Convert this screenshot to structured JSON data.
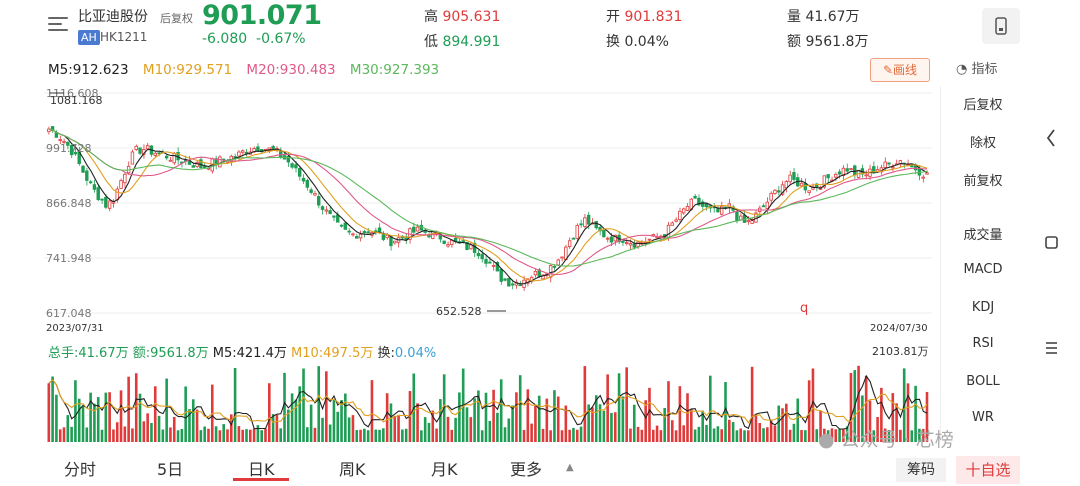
{
  "header": {
    "stock_name": "比亚迪股份",
    "badge": "AH",
    "code": "HK1211",
    "adjust_mode": "后复权",
    "price": "901.071",
    "change": "-6.080",
    "change_pct": "-0.67%",
    "quotes": [
      {
        "label": "高",
        "value": "905.631",
        "color": "red"
      },
      {
        "label": "低",
        "value": "894.991",
        "color": "green"
      },
      {
        "label": "开",
        "value": "901.831",
        "color": "red"
      },
      {
        "label": "换",
        "value": "0.04%",
        "color": "plain"
      },
      {
        "label": "量",
        "value": "41.67万",
        "color": "plain"
      },
      {
        "label": "额",
        "value": "9561.8万",
        "color": "plain"
      }
    ]
  },
  "ma": {
    "m5": "M5:912.623",
    "m10": "M10:929.571",
    "m20": "M20:930.483",
    "m30": "M30:927.393",
    "draw_label": "画线",
    "indicator_label": "指标"
  },
  "sidebar": {
    "items": [
      "后复权",
      "除权",
      "前复权",
      "成交量",
      "MACD",
      "KDJ",
      "RSI",
      "BOLL",
      "WR"
    ]
  },
  "volume": {
    "total": "总手:41.67万",
    "amount": "额:9561.8万",
    "m5": "M5:421.4万",
    "m10": "M10:497.5万",
    "turnover_label": "换:",
    "turnover_value": "0.04%",
    "max_label": "2103.81万"
  },
  "tabs": [
    "分时",
    "5日",
    "日K",
    "周K",
    "月K",
    "更多"
  ],
  "actions": {
    "chips": "筹码",
    "add_fav": "十自选"
  },
  "watermark": "公众号 · 芯榜",
  "colors": {
    "up": "#e03a3a",
    "down": "#1f9d55",
    "m5": "#222222",
    "m10": "#e0a020",
    "m20": "#e05a8a",
    "m30": "#5cb85c"
  },
  "chart_data": {
    "type": "candlestick",
    "start_date": "2023/07/31",
    "end_date": "2024/07/30",
    "y_ticks": [
      "1116.608",
      "991.728",
      "866.848",
      "741.948",
      "617.048"
    ],
    "ylim": [
      617.048,
      1116.608
    ],
    "high_marker": "1081.168",
    "low_marker": "652.528",
    "close_path": [
      1035,
      1025,
      1010,
      990,
      960,
      930,
      900,
      880,
      860,
      880,
      920,
      960,
      985,
      990,
      985,
      980,
      975,
      970,
      965,
      960,
      955,
      950,
      955,
      960,
      965,
      970,
      975,
      985,
      990,
      995,
      990,
      985,
      975,
      960,
      940,
      920,
      900,
      875,
      850,
      830,
      810,
      800,
      795,
      800,
      805,
      800,
      790,
      780,
      785,
      790,
      800,
      805,
      800,
      795,
      790,
      780,
      775,
      770,
      765,
      760,
      745,
      725,
      700,
      690,
      685,
      690,
      700,
      705,
      710,
      720,
      735,
      760,
      790,
      815,
      830,
      810,
      800,
      790,
      785,
      790,
      780,
      775,
      780,
      785,
      790,
      800,
      820,
      840,
      860,
      870,
      860,
      850,
      845,
      850,
      860,
      830,
      820,
      830,
      850,
      870,
      890,
      910,
      920,
      915,
      905,
      900,
      910,
      920,
      930,
      940,
      945,
      935,
      930,
      935,
      945,
      950,
      955,
      965,
      960,
      950,
      940,
      930
    ]
  }
}
